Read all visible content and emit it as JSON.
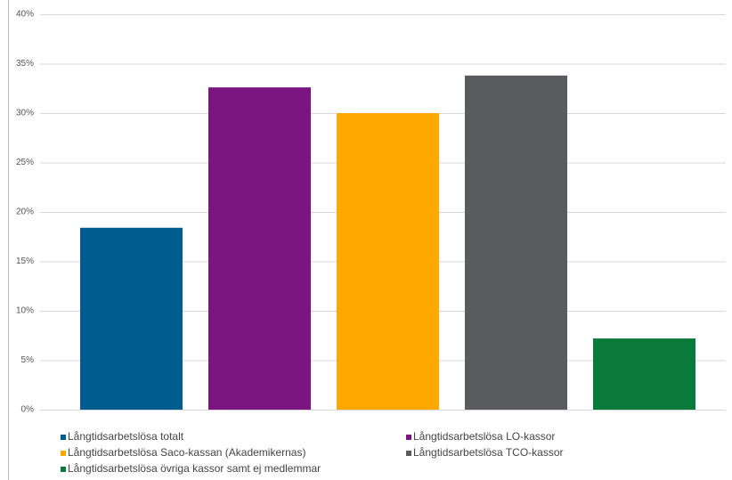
{
  "chart_data": {
    "type": "bar",
    "categories": [
      null
    ],
    "series": [
      {
        "name": "Långtidsarbetslösa totalt",
        "color": "#005b8f",
        "values": [
          18.4
        ]
      },
      {
        "name": "Långtidsarbetslösa LO-kassor",
        "color": "#7b1580",
        "values": [
          32.6
        ]
      },
      {
        "name": "Långtidsarbetslösa Saco-kassan (Akademikernas)",
        "color": "#ffa800",
        "values": [
          30.0
        ]
      },
      {
        "name": "Långtidsarbetslösa TCO-kassor",
        "color": "#5a5b5e",
        "values": [
          33.8
        ]
      },
      {
        "name": "Långtidsarbetslösa övriga kassor samt ej medlemmar",
        "color": "#0a7a3a",
        "values": [
          7.2
        ]
      }
    ],
    "ylim": [
      0,
      40
    ],
    "yticks": [
      {
        "value": 0,
        "label": "0%"
      },
      {
        "value": 5,
        "label": "5%"
      },
      {
        "value": 10,
        "label": "10%"
      },
      {
        "value": 15,
        "label": "15%"
      },
      {
        "value": 20,
        "label": "20%"
      },
      {
        "value": 25,
        "label": "25%"
      },
      {
        "value": 30,
        "label": "30%"
      },
      {
        "value": 35,
        "label": "35%"
      },
      {
        "value": 40,
        "label": "40%"
      }
    ],
    "grid": true
  }
}
